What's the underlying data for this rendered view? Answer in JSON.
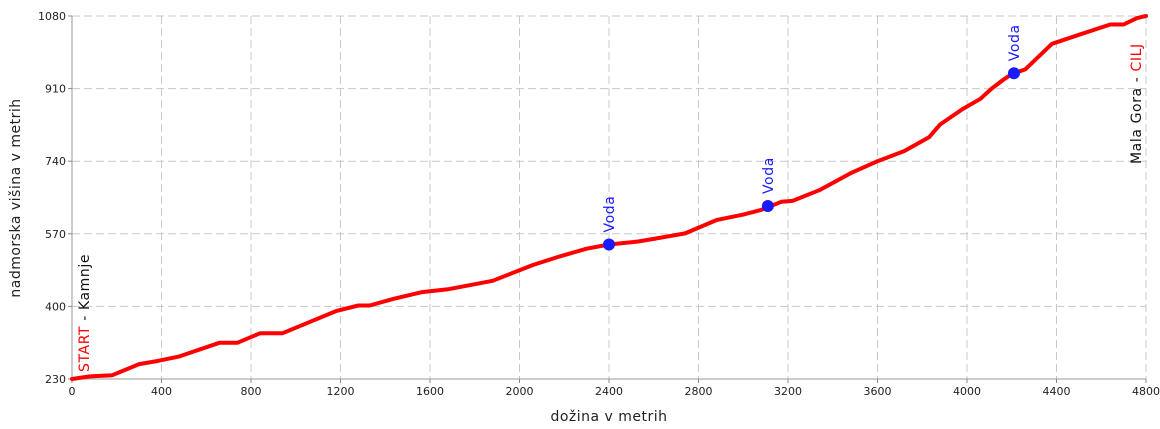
{
  "chart_data": {
    "type": "line",
    "xlabel": "dožina v metrih",
    "ylabel": "nadmorska višina v metrih",
    "xlim": [
      0,
      4800
    ],
    "ylim": [
      230,
      1080
    ],
    "x_ticks": [
      0,
      400,
      800,
      1200,
      1600,
      2000,
      2400,
      2800,
      3200,
      3600,
      4000,
      4400,
      4800
    ],
    "y_ticks": [
      230,
      400,
      570,
      740,
      910,
      1080
    ],
    "grid": true,
    "line_color": "#ff0000",
    "series": [
      {
        "points": [
          [
            0,
            230
          ],
          [
            80,
            236
          ],
          [
            180,
            239
          ],
          [
            300,
            265
          ],
          [
            380,
            272
          ],
          [
            480,
            283
          ],
          [
            660,
            315
          ],
          [
            740,
            315
          ],
          [
            840,
            337
          ],
          [
            940,
            337
          ],
          [
            1060,
            363
          ],
          [
            1180,
            389
          ],
          [
            1280,
            402
          ],
          [
            1330,
            402
          ],
          [
            1440,
            418
          ],
          [
            1560,
            433
          ],
          [
            1680,
            440
          ],
          [
            1880,
            460
          ],
          [
            2060,
            497
          ],
          [
            2180,
            517
          ],
          [
            2300,
            535
          ],
          [
            2400,
            545
          ],
          [
            2530,
            552
          ],
          [
            2600,
            558
          ],
          [
            2740,
            571
          ],
          [
            2880,
            602
          ],
          [
            3000,
            615
          ],
          [
            3080,
            626
          ],
          [
            3170,
            645
          ],
          [
            3220,
            647
          ],
          [
            3340,
            672
          ],
          [
            3480,
            712
          ],
          [
            3600,
            740
          ],
          [
            3720,
            764
          ],
          [
            3830,
            796
          ],
          [
            3880,
            826
          ],
          [
            3980,
            862
          ],
          [
            4060,
            886
          ],
          [
            4110,
            910
          ],
          [
            4160,
            930
          ],
          [
            4200,
            944
          ],
          [
            4260,
            955
          ],
          [
            4380,
            1015
          ],
          [
            4500,
            1036
          ],
          [
            4640,
            1060
          ],
          [
            4700,
            1060
          ],
          [
            4760,
            1075
          ],
          [
            4800,
            1080
          ]
        ]
      }
    ],
    "markers_color": "#1a1aff",
    "markers": [
      {
        "x": 2400,
        "y": 545,
        "label": "Voda"
      },
      {
        "x": 3110,
        "y": 635,
        "label": "Voda"
      },
      {
        "x": 4210,
        "y": 946,
        "label": "Voda"
      }
    ],
    "start_annotation": {
      "colored": "START",
      "rest": " - Kamnje",
      "color": "#ff0000"
    },
    "end_annotation": {
      "rest": "Mala Gora - ",
      "colored": "CILJ",
      "color": "#ff0000"
    }
  }
}
